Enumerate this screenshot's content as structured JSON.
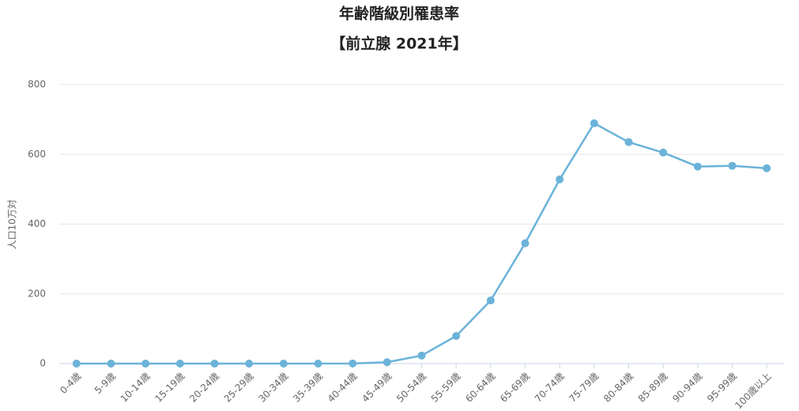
{
  "chart_data": {
    "type": "line",
    "title": "年齢階級別罹患率",
    "subtitle": "【前立腺 2021年】",
    "y_label": "人口10万対",
    "categories": [
      "0-4歳",
      "5-9歳",
      "10-14歳",
      "15-19歳",
      "20-24歳",
      "25-29歳",
      "30-34歳",
      "35-39歳",
      "40-44歳",
      "45-49歳",
      "50-54歳",
      "55-59歳",
      "60-64歳",
      "65-69歳",
      "70-74歳",
      "75-79歳",
      "80-84歳",
      "85-89歳",
      "90-94歳",
      "95-99歳",
      "100歳以上"
    ],
    "series": [
      {
        "name": "罹患率",
        "color": "#6bb3d9",
        "values": [
          0,
          0,
          0,
          0,
          0,
          0,
          0,
          0,
          0.4,
          4,
          23,
          79,
          181,
          345,
          528,
          689,
          635,
          605,
          565,
          567,
          560
        ]
      }
    ],
    "ylim": [
      0,
      800
    ],
    "yticks": [
      0,
      200,
      400,
      600,
      800
    ],
    "grid": true
  }
}
